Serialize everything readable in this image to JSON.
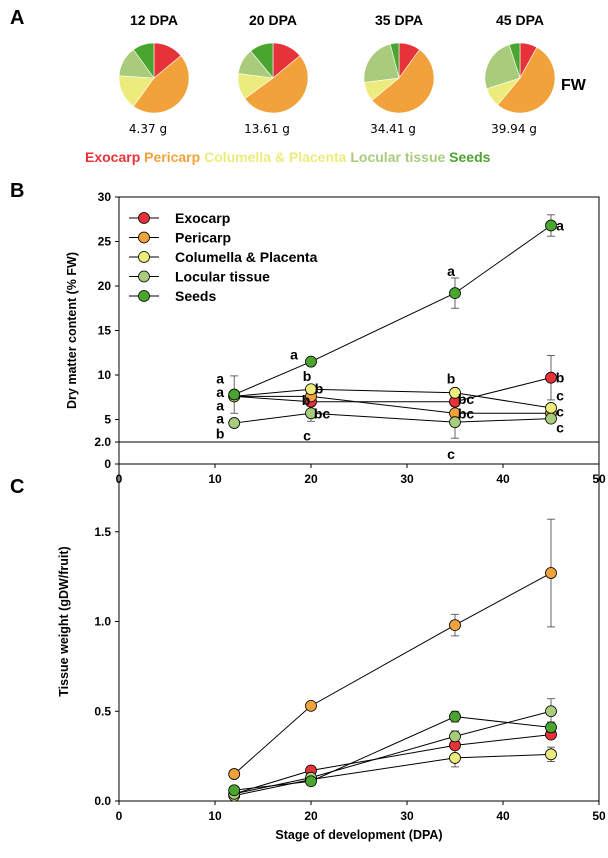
{
  "panels": {
    "a": "A",
    "b": "B",
    "c": "C"
  },
  "colors": {
    "Exocarp": "#e8323a",
    "Pericarp": "#f2a23a",
    "Columella & Placenta": "#ecec7c",
    "Locular tissue": "#a8cc7c",
    "Seeds": "#4aa52e"
  },
  "legend_a": [
    "Exocarp",
    "Pericarp",
    "Columella & Placenta",
    "Locular tissue",
    "Seeds"
  ],
  "fw_label": "FW",
  "chart_data": [
    {
      "type": "pie",
      "panel": "A",
      "pies": [
        {
          "title": "12 DPA",
          "weight": "4.37 g",
          "slices": [
            14,
            46,
            16,
            14,
            10
          ]
        },
        {
          "title": "20 DPA",
          "weight": "13.61 g",
          "slices": [
            14,
            51,
            12,
            12,
            11
          ]
        },
        {
          "title": "35 DPA",
          "weight": "34.41 g",
          "slices": [
            10,
            54,
            9,
            23,
            4
          ]
        },
        {
          "title": "45 DPA",
          "weight": "39.94 g",
          "slices": [
            8,
            53,
            9,
            25,
            5
          ]
        }
      ]
    },
    {
      "type": "line",
      "panel": "B",
      "xlabel": "",
      "ylabel": "Dry matter content (% FW)",
      "xlim": [
        0,
        50
      ],
      "ylim": [
        0,
        30
      ],
      "xticks": [
        0,
        10,
        20,
        30,
        40,
        50
      ],
      "yticks": [
        0,
        5,
        10,
        15,
        20,
        25,
        30
      ],
      "legend_position": "top-left",
      "x": [
        12,
        20,
        35,
        45
      ],
      "series": [
        {
          "name": "Exocarp",
          "values": [
            7.6,
            7.0,
            7.0,
            9.7
          ],
          "err": [
            0.3,
            0.5,
            0.5,
            2.5
          ]
        },
        {
          "name": "Pericarp",
          "values": [
            7.6,
            7.6,
            5.7,
            5.7
          ],
          "err": [
            0.3,
            0.3,
            0.3,
            0.3
          ]
        },
        {
          "name": "Columella & Placenta",
          "values": [
            7.6,
            8.4,
            8.0,
            6.3
          ],
          "err": [
            0.3,
            0.3,
            0.3,
            0.3
          ]
        },
        {
          "name": "Locular tissue",
          "values": [
            4.6,
            5.7,
            4.7,
            5.1
          ],
          "err": [
            0.3,
            0.9,
            1.8,
            0.3
          ]
        },
        {
          "name": "Seeds",
          "values": [
            7.8,
            11.5,
            19.2,
            26.8
          ],
          "err": [
            2.1,
            0.3,
            1.7,
            1.2
          ]
        }
      ],
      "annotations": [
        {
          "text": "a",
          "x": 12,
          "y": 9.6,
          "dx": -14
        },
        {
          "text": "a",
          "x": 12,
          "y": 8.1,
          "dx": -14
        },
        {
          "text": "a",
          "x": 12,
          "y": 6.6,
          "dx": -14
        },
        {
          "text": "a",
          "x": 12,
          "y": 5.1,
          "dx": -14
        },
        {
          "text": "b",
          "x": 12,
          "y": 3.4,
          "dx": -14
        },
        {
          "text": "a",
          "x": 20,
          "y": 12.3,
          "dx": -17
        },
        {
          "text": "b",
          "x": 20,
          "y": 9.9,
          "dx": -4
        },
        {
          "text": "b",
          "x": 20,
          "y": 8.5,
          "dx": 8
        },
        {
          "text": "b",
          "x": 20,
          "y": 7.2,
          "dx": -5
        },
        {
          "text": "bc",
          "x": 20,
          "y": 5.7,
          "dx": 11
        },
        {
          "text": "c",
          "x": 20,
          "y": 3.2,
          "dx": -4
        },
        {
          "text": "a",
          "x": 35,
          "y": 21.7,
          "dx": -4
        },
        {
          "text": "b",
          "x": 35,
          "y": 9.6,
          "dx": -4
        },
        {
          "text": "bc",
          "x": 35,
          "y": 7.3,
          "dx": 11
        },
        {
          "text": "bc",
          "x": 35,
          "y": 5.7,
          "dx": 11
        },
        {
          "text": "c",
          "x": 35,
          "y": 1.1,
          "dx": -4
        },
        {
          "text": "a",
          "x": 45,
          "y": 26.8,
          "dx": 9
        },
        {
          "text": "b",
          "x": 45,
          "y": 9.7,
          "dx": 9
        },
        {
          "text": "c",
          "x": 45,
          "y": 7.7,
          "dx": 9
        },
        {
          "text": "c",
          "x": 45,
          "y": 5.9,
          "dx": 9
        },
        {
          "text": "c",
          "x": 45,
          "y": 4.1,
          "dx": 9
        }
      ]
    },
    {
      "type": "line",
      "panel": "C",
      "xlabel": "Stage of development (DPA)",
      "ylabel": "Tissue  weight (gDW/fruit)",
      "xlim": [
        0,
        50
      ],
      "ylim": [
        0,
        2.0
      ],
      "xticks": [
        0,
        10,
        20,
        30,
        40,
        50
      ],
      "yticks": [
        "0.0",
        "0.5",
        "1.0",
        "1.5",
        "2.0"
      ],
      "x": [
        12,
        20,
        35,
        45
      ],
      "series": [
        {
          "name": "Exocarp",
          "values": [
            0.04,
            0.17,
            0.31,
            0.37
          ],
          "err": [
            0,
            0.01,
            0.02,
            0.02
          ]
        },
        {
          "name": "Pericarp",
          "values": [
            0.15,
            0.53,
            0.98,
            1.27
          ],
          "err": [
            0,
            0.02,
            0.06,
            0.3
          ]
        },
        {
          "name": "Columella & Placenta",
          "values": [
            0.03,
            0.12,
            0.24,
            0.26
          ],
          "err": [
            0,
            0.01,
            0.05,
            0.04
          ]
        },
        {
          "name": "Locular tissue",
          "values": [
            0.04,
            0.13,
            0.36,
            0.5
          ],
          "err": [
            0,
            0.01,
            0.03,
            0.07
          ]
        },
        {
          "name": "Seeds",
          "values": [
            0.06,
            0.11,
            0.47,
            0.41
          ],
          "err": [
            0,
            0.01,
            0.03,
            0.03
          ]
        }
      ]
    }
  ]
}
